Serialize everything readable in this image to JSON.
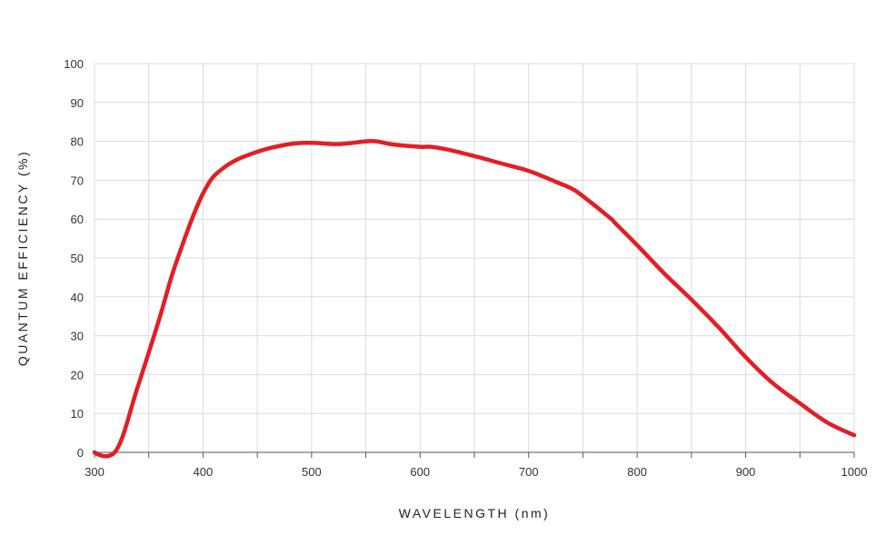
{
  "chart_data": {
    "type": "line",
    "title": "",
    "xlabel": "WAVELENGTH (nm)",
    "ylabel": "QUANTUM EFFICIENCY (%)",
    "xlim": [
      300,
      1000
    ],
    "ylim": [
      0,
      100
    ],
    "xticks": [
      300,
      400,
      500,
      600,
      700,
      800,
      900,
      1000
    ],
    "yticks": [
      0,
      10,
      20,
      30,
      40,
      50,
      60,
      70,
      80,
      90,
      100
    ],
    "grid": true,
    "line_color": "#e31e24",
    "series": [
      {
        "name": "Quantum Efficiency",
        "x": [
          300,
          320,
          340,
          360,
          375,
          400,
          420,
          450,
          480,
          500,
          525,
          550,
          560,
          575,
          600,
          610,
          625,
          650,
          675,
          700,
          725,
          740,
          750,
          775,
          780,
          800,
          825,
          850,
          875,
          900,
          925,
          950,
          975,
          1000
        ],
        "y": [
          0,
          0.5,
          17,
          34.6,
          48.6,
          66.6,
          73.4,
          77.3,
          79.3,
          79.6,
          79.3,
          80,
          80,
          79.2,
          78.6,
          78.6,
          77.9,
          76.2,
          74.3,
          72.4,
          69.6,
          67.8,
          65.9,
          60.3,
          58.9,
          53.3,
          46,
          39.3,
          32.2,
          24.5,
          17.8,
          12.6,
          7.7,
          4.4
        ]
      }
    ]
  }
}
